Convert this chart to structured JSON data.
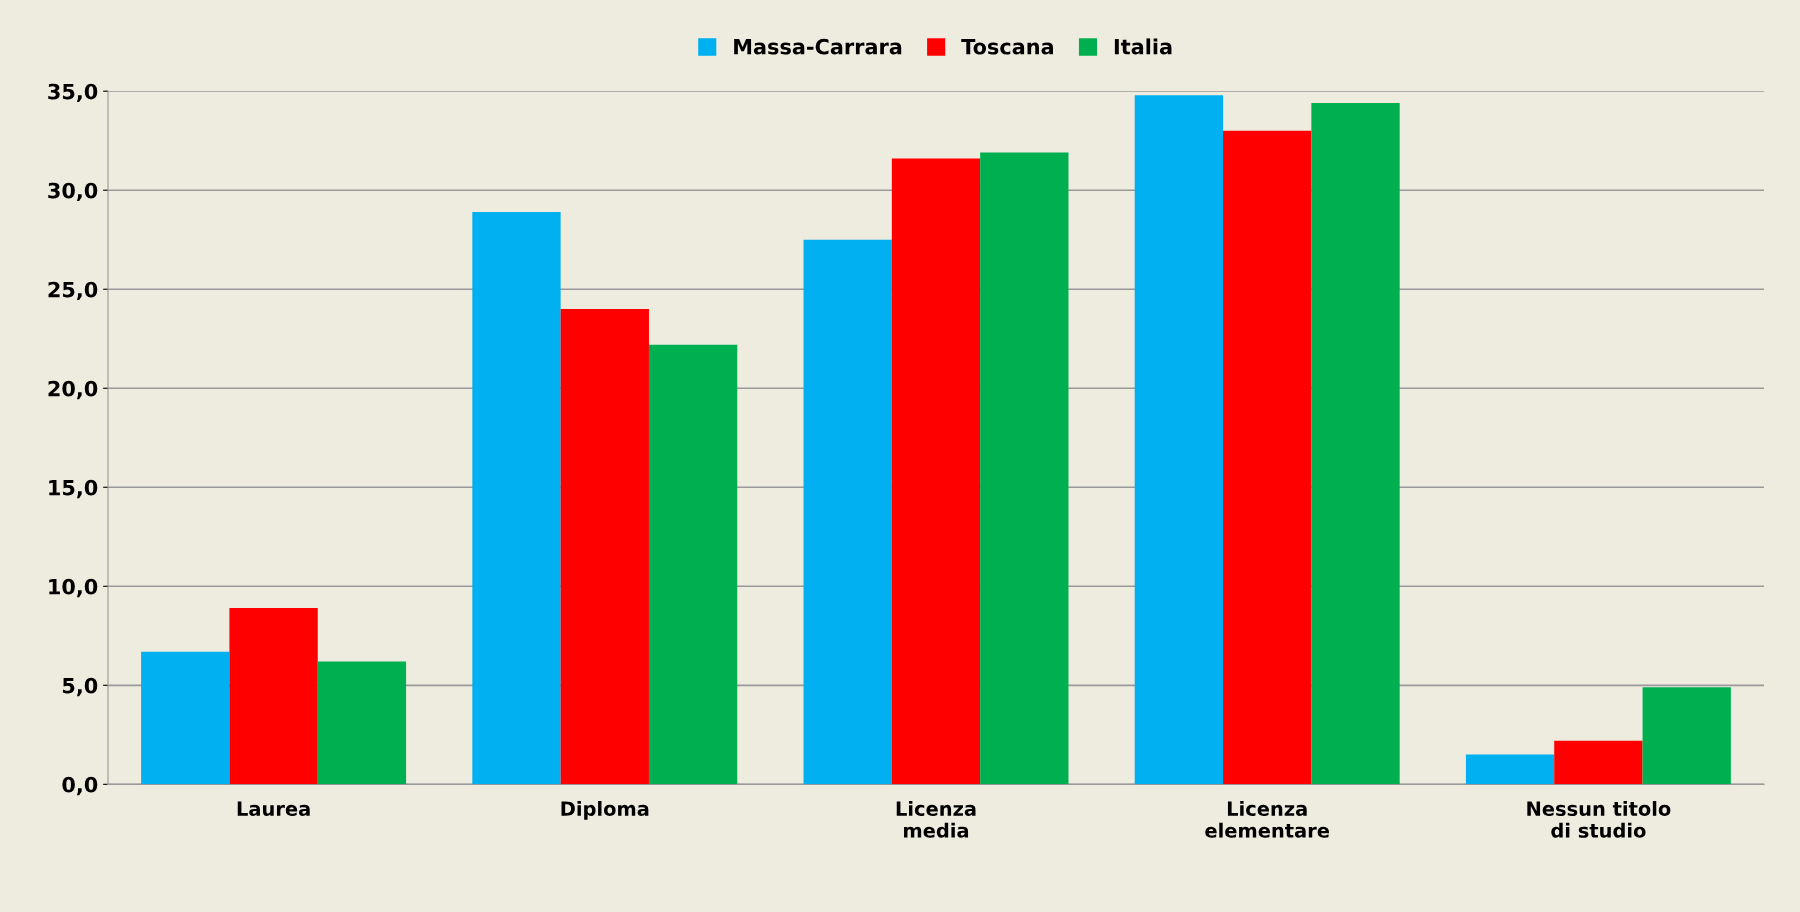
{
  "chart_data": {
    "type": "bar",
    "categories": [
      "Laurea",
      "Diploma",
      "Licenza\nmedia",
      "Licenza\nelementare",
      "Nessun titolo\ndi studio"
    ],
    "series": [
      {
        "name": "Massa-Carrara",
        "color": "#00b0f0",
        "values": [
          6.7,
          28.9,
          27.5,
          34.8,
          1.5
        ]
      },
      {
        "name": "Toscana",
        "color": "#ff0000",
        "values": [
          8.9,
          24.0,
          31.6,
          33.0,
          2.2
        ]
      },
      {
        "name": "Italia",
        "color": "#00b050",
        "values": [
          6.2,
          22.2,
          31.9,
          34.4,
          4.9
        ]
      }
    ],
    "ylim": [
      0,
      35
    ],
    "yticks": [
      {
        "value": 0,
        "label": "0,0"
      },
      {
        "value": 5,
        "label": "5,0"
      },
      {
        "value": 10,
        "label": "10,0"
      },
      {
        "value": 15,
        "label": "15,0"
      },
      {
        "value": 20,
        "label": "20,0"
      },
      {
        "value": 25,
        "label": "25,0"
      },
      {
        "value": 30,
        "label": "30,0"
      },
      {
        "value": 35,
        "label": "35,0"
      }
    ],
    "grid": "y",
    "legend": "top"
  }
}
